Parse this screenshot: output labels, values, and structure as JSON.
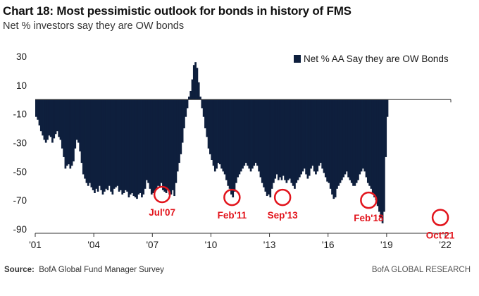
{
  "header": {
    "title": "Chart 18: Most pessimistic outlook for bonds in history of FMS",
    "subtitle": "Net % investors say they are OW bonds"
  },
  "footer": {
    "source_label": "Source:",
    "source_text": "BofA Global Fund Manager Survey",
    "brand": "BofA GLOBAL RESEARCH"
  },
  "colors": {
    "bar": "#0e1f3d",
    "highlight": "#e2141c",
    "axis": "#333333"
  },
  "chart_data": {
    "type": "bar",
    "title": "",
    "xlabel": "",
    "ylabel": "",
    "ylim": [
      -90,
      30
    ],
    "xlim": [
      2001.0,
      2022.0
    ],
    "y_ticks": [
      30,
      10,
      -10,
      -30,
      -50,
      -70,
      -90
    ],
    "x_ticks": [
      {
        "value": 2001,
        "label": "'01"
      },
      {
        "value": 2004,
        "label": "'04"
      },
      {
        "value": 2007,
        "label": "'07"
      },
      {
        "value": 2010,
        "label": "'10"
      },
      {
        "value": 2013,
        "label": "'13"
      },
      {
        "value": 2016,
        "label": "'16"
      },
      {
        "value": 2019,
        "label": "'19"
      },
      {
        "value": 2022,
        "label": "'22"
      }
    ],
    "grid": false,
    "legend_position": "top-right",
    "series": [
      {
        "name": "Net % AA Say they are OW Bonds",
        "x_start": 2001.0,
        "step": 0.0833,
        "values": [
          -12,
          -14,
          -18,
          -22,
          -25,
          -28,
          -30,
          -28,
          -25,
          -26,
          -30,
          -27,
          -24,
          -22,
          -26,
          -28,
          -34,
          -40,
          -48,
          -46,
          -45,
          -48,
          -46,
          -43,
          -34,
          -28,
          -30,
          -36,
          -44,
          -52,
          -55,
          -58,
          -60,
          -58,
          -61,
          -63,
          -65,
          -62,
          -64,
          -60,
          -63,
          -66,
          -64,
          -62,
          -63,
          -60,
          -64,
          -66,
          -62,
          -61,
          -60,
          -64,
          -63,
          -66,
          -65,
          -63,
          -64,
          -68,
          -66,
          -65,
          -67,
          -68,
          -69,
          -66,
          -65,
          -68,
          -66,
          -62,
          -56,
          -58,
          -62,
          -66,
          -65,
          -64,
          -62,
          -60,
          -61,
          -58,
          -63,
          -64,
          -65,
          -62,
          -66,
          -66,
          -63,
          -67,
          -58,
          -50,
          -44,
          -38,
          -30,
          -20,
          -12,
          -6,
          2,
          6,
          14,
          24,
          26,
          22,
          12,
          2,
          -6,
          -12,
          -20,
          -26,
          -34,
          -38,
          -42,
          -46,
          -50,
          -48,
          -44,
          -45,
          -48,
          -50,
          -52,
          -56,
          -60,
          -62,
          -66,
          -68,
          -64,
          -58,
          -54,
          -52,
          -50,
          -48,
          -46,
          -44,
          -46,
          -48,
          -50,
          -48,
          -46,
          -44,
          -46,
          -50,
          -54,
          -58,
          -61,
          -64,
          -67,
          -66,
          -68,
          -62,
          -58,
          -55,
          -52,
          -56,
          -54,
          -56,
          -53,
          -56,
          -58,
          -56,
          -55,
          -58,
          -60,
          -62,
          -58,
          -56,
          -54,
          -52,
          -50,
          -48,
          -52,
          -55,
          -53,
          -48,
          -46,
          -50,
          -52,
          -50,
          -46,
          -44,
          -48,
          -51,
          -54,
          -57,
          -58,
          -62,
          -66,
          -69,
          -68,
          -62,
          -60,
          -58,
          -56,
          -54,
          -52,
          -50,
          -54,
          -56,
          -58,
          -60,
          -60,
          -58,
          -56,
          -52,
          -50,
          -48,
          -50,
          -54,
          -58,
          -60,
          -62,
          -66,
          -68,
          -70,
          -74,
          -78,
          -82,
          -86,
          -78,
          -40,
          -12
        ]
      }
    ],
    "annotations": [
      {
        "label": "Jul'07",
        "x": 2007.5,
        "y": -66
      },
      {
        "label": "Feb'11",
        "x": 2011.08,
        "y": -68
      },
      {
        "label": "Sep'13",
        "x": 2013.67,
        "y": -68
      },
      {
        "label": "Feb'18",
        "x": 2018.08,
        "y": -70
      },
      {
        "label": "Oct'21",
        "x": 2021.75,
        "y": -82
      }
    ]
  }
}
